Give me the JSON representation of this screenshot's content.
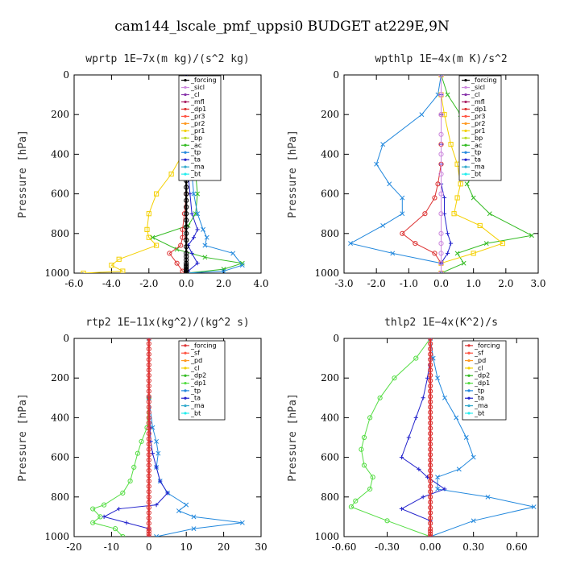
{
  "title": "cam144_lscale_pmf_uppsi0  BUDGET at229E,9N",
  "chart_data": [
    {
      "type": "line",
      "title": "wprtp   1E−7x(m kg)/(s^2 kg)",
      "ylabel": "Pressure [hPa]",
      "xlim": [
        -6,
        4
      ],
      "ylim": [
        1000,
        0
      ],
      "xticks": [
        -6,
        -4,
        -2,
        0,
        2,
        4
      ],
      "xtick_labels": [
        "-6.0",
        "-4.0",
        "-2.0",
        "0.0",
        "2.0",
        "4.0"
      ],
      "yticks": [
        0,
        200,
        400,
        600,
        800,
        1000
      ],
      "ytick_labels": [
        "0",
        "200",
        "400",
        "600",
        "800",
        "1000"
      ],
      "legend_position": "top-right",
      "legend": [
        "_forcing",
        "_sicl",
        "_cl",
        "_mfl",
        "_dp1",
        "_pr3",
        "_pr2",
        "_pr1",
        "_bp",
        "_ac",
        "_tp",
        "_ta",
        "_ma",
        "_bt"
      ],
      "series": [
        {
          "name": "_pr1",
          "color": "#f4d000",
          "marker": "square",
          "x": [
            0,
            0,
            -0.2,
            -0.8,
            -1.6,
            -2,
            -2.1,
            -2,
            -1.6,
            -3.6,
            -4,
            -3.4,
            -5.5
          ],
          "y": [
            0,
            300,
            400,
            500,
            600,
            700,
            780,
            820,
            860,
            930,
            960,
            990,
            1000
          ]
        },
        {
          "name": "_ac",
          "color": "#33bb22",
          "marker": "x",
          "x": [
            0,
            0,
            0.2,
            0.5,
            0.6,
            0.5,
            0.1,
            -1.8,
            -0.5,
            1,
            3,
            2,
            0
          ],
          "y": [
            0,
            300,
            400,
            500,
            600,
            700,
            760,
            820,
            880,
            920,
            950,
            980,
            1000
          ]
        },
        {
          "name": "_tp",
          "color": "#2288dd",
          "marker": "x",
          "x": [
            0,
            0,
            0.1,
            0.3,
            0.4,
            0.6,
            0.9,
            1.1,
            1,
            2.5,
            3,
            2,
            0
          ],
          "y": [
            0,
            300,
            400,
            500,
            600,
            700,
            780,
            820,
            860,
            900,
            960,
            990,
            1000
          ]
        },
        {
          "name": "_ta",
          "color": "#2222cc",
          "marker": "plus",
          "x": [
            0,
            0,
            0,
            0.1,
            0.2,
            0.3,
            0.6,
            0.4,
            0.1,
            0.3,
            0.6,
            0.1,
            0
          ],
          "y": [
            0,
            300,
            400,
            500,
            600,
            700,
            780,
            820,
            860,
            900,
            950,
            990,
            1000
          ]
        },
        {
          "name": "_dp1",
          "color": "#dd3333",
          "marker": "circle",
          "x": [
            0,
            0,
            0,
            0,
            0,
            -0.1,
            -0.2,
            -0.2,
            -0.3,
            -0.9,
            -0.5,
            -0.2,
            0
          ],
          "y": [
            0,
            300,
            400,
            500,
            600,
            700,
            780,
            820,
            860,
            900,
            950,
            990,
            1000
          ]
        },
        {
          "name": "_forcing",
          "color": "#000000",
          "marker": "circle",
          "x": [
            0,
            0,
            0,
            0,
            0,
            0,
            0,
            0,
            0,
            0,
            0,
            0,
            0
          ],
          "y": [
            0,
            100,
            200,
            300,
            400,
            500,
            600,
            700,
            800,
            900,
            950,
            980,
            1000
          ]
        }
      ]
    },
    {
      "type": "line",
      "title": "wpthlp   1E−4x(m K)/s^2",
      "ylabel": "Pressure [hPa]",
      "xlim": [
        -3,
        3
      ],
      "ylim": [
        1000,
        0
      ],
      "xticks": [
        -3,
        -2,
        -1,
        0,
        1,
        2,
        3
      ],
      "xtick_labels": [
        "-3.0",
        "-2.0",
        "-1.0",
        "0.0",
        "1.0",
        "2.0",
        "3.0"
      ],
      "yticks": [
        0,
        200,
        400,
        600,
        800,
        1000
      ],
      "ytick_labels": [
        "0",
        "200",
        "400",
        "600",
        "800",
        "1000"
      ],
      "legend_position": "top-right",
      "legend": [
        "_forcing",
        "_sicl",
        "_cl",
        "_mfl",
        "_dp1",
        "_pr3",
        "_pr2",
        "_pr1",
        "_bp",
        "_ac",
        "_tp",
        "_ta",
        "_ma",
        "_bt"
      ],
      "series": [
        {
          "name": "_tp",
          "color": "#2288dd",
          "marker": "x",
          "x": [
            0,
            -0.1,
            -0.6,
            -1.8,
            -2,
            -1.6,
            -1.2,
            -1.2,
            -1.8,
            -2.8,
            -1.5,
            0,
            0
          ],
          "y": [
            0,
            100,
            200,
            350,
            450,
            550,
            620,
            700,
            760,
            850,
            900,
            950,
            1000
          ]
        },
        {
          "name": "_ac",
          "color": "#33bb22",
          "marker": "x",
          "x": [
            0,
            0.2,
            0.6,
            1.1,
            1.2,
            0.8,
            1.0,
            1.5,
            2.8,
            1.4,
            0.5,
            0.7,
            0
          ],
          "y": [
            0,
            100,
            200,
            350,
            450,
            550,
            620,
            700,
            810,
            850,
            900,
            950,
            1000
          ]
        },
        {
          "name": "_pr1",
          "color": "#f4d000",
          "marker": "square",
          "x": [
            0,
            0,
            0.1,
            0.3,
            0.5,
            0.6,
            0.5,
            0.4,
            1.2,
            1.9,
            1,
            0,
            0
          ],
          "y": [
            0,
            100,
            200,
            350,
            450,
            550,
            620,
            700,
            760,
            850,
            900,
            950,
            1000
          ]
        },
        {
          "name": "_dp1",
          "color": "#dd3333",
          "marker": "circle",
          "x": [
            0,
            0,
            0,
            0,
            0,
            -0.1,
            -0.2,
            -0.5,
            -1.2,
            -0.8,
            -0.2,
            0,
            0
          ],
          "y": [
            0,
            100,
            200,
            350,
            450,
            550,
            620,
            700,
            800,
            850,
            900,
            950,
            1000
          ]
        },
        {
          "name": "_ta",
          "color": "#2222cc",
          "marker": "plus",
          "x": [
            0,
            0,
            0,
            0,
            0,
            0,
            0.1,
            0.1,
            0.2,
            0.3,
            0.2,
            0,
            0
          ],
          "y": [
            0,
            100,
            200,
            350,
            450,
            550,
            620,
            700,
            800,
            850,
            900,
            950,
            1000
          ]
        },
        {
          "name": "_pr3",
          "color": "#cc88dd",
          "marker": "circle",
          "x": [
            0,
            0,
            0,
            0,
            0,
            0,
            0,
            0,
            0,
            0,
            0,
            0,
            0
          ],
          "y": [
            0,
            100,
            200,
            300,
            400,
            500,
            600,
            700,
            800,
            850,
            900,
            950,
            1000
          ]
        }
      ]
    },
    {
      "type": "line",
      "title": "rtp2   1E−11x(kg^2)/(kg^2 s)",
      "ylabel": "Pressure [hPa]",
      "xlim": [
        -20,
        30
      ],
      "ylim": [
        1000,
        0
      ],
      "xticks": [
        -20,
        -10,
        0,
        10,
        20,
        30
      ],
      "xtick_labels": [
        "-20",
        "-10",
        "0",
        "10",
        "20",
        "30"
      ],
      "yticks": [
        0,
        200,
        400,
        600,
        800,
        1000
      ],
      "ytick_labels": [
        "0",
        "200",
        "400",
        "600",
        "800",
        "1000"
      ],
      "legend_position": "top-right",
      "legend": [
        "_forcing",
        "_sf",
        "_pd",
        "_cl",
        "_dp2",
        "_dp1",
        "_tp",
        "_ta",
        "_ma",
        "_bt"
      ],
      "series": [
        {
          "name": "_dp1",
          "color": "#55dd44",
          "marker": "circle",
          "x": [
            0,
            0,
            -0.5,
            -2,
            -3,
            -4,
            -5,
            -7,
            -12,
            -15,
            -13,
            -15,
            -9,
            -7
          ],
          "y": [
            0,
            300,
            450,
            520,
            580,
            650,
            720,
            780,
            840,
            860,
            900,
            930,
            960,
            1000
          ]
        },
        {
          "name": "_tp",
          "color": "#2288dd",
          "marker": "x",
          "x": [
            0,
            0,
            1,
            2,
            2.5,
            2,
            3,
            5,
            10,
            8,
            12,
            25,
            12,
            2
          ],
          "y": [
            0,
            300,
            450,
            520,
            580,
            650,
            720,
            780,
            840,
            870,
            900,
            930,
            960,
            1000
          ]
        },
        {
          "name": "_ta",
          "color": "#2222cc",
          "marker": "plus",
          "x": [
            0,
            0,
            0.3,
            0.5,
            1,
            2,
            3,
            5,
            2,
            -8,
            -12,
            -6,
            0,
            0
          ],
          "y": [
            0,
            300,
            450,
            520,
            580,
            650,
            720,
            780,
            840,
            860,
            900,
            930,
            960,
            1000
          ]
        },
        {
          "name": "_forcing",
          "color": "#dd3333",
          "marker": "circle",
          "x": [
            0,
            0,
            0,
            0,
            0,
            0,
            0,
            0,
            0,
            0,
            0,
            0,
            0,
            0
          ],
          "y": [
            0,
            80,
            160,
            240,
            320,
            400,
            480,
            560,
            640,
            720,
            800,
            880,
            960,
            1000
          ]
        }
      ]
    },
    {
      "type": "line",
      "title": "thlp2   1E−4x(K^2)/s",
      "ylabel": "Pressure [hPa]",
      "xlim": [
        -0.6,
        0.75
      ],
      "ylim": [
        1000,
        0
      ],
      "xticks": [
        -0.6,
        -0.3,
        0,
        0.3,
        0.6
      ],
      "xtick_labels": [
        "-0.60",
        "-0.30",
        "0.00",
        "0.30",
        "0.60"
      ],
      "yticks": [
        0,
        200,
        400,
        600,
        800,
        1000
      ],
      "ytick_labels": [
        "0",
        "200",
        "400",
        "600",
        "800",
        "1000"
      ],
      "legend_position": "top-right",
      "legend": [
        "_forcing",
        "_sf",
        "_pd",
        "_cl",
        "_dp2",
        "_dp1",
        "_tp",
        "_ta",
        "_ma",
        "_bt"
      ],
      "series": [
        {
          "name": "_dp1",
          "color": "#55dd44",
          "marker": "circle",
          "x": [
            0,
            -0.1,
            -0.25,
            -0.35,
            -0.42,
            -0.46,
            -0.48,
            -0.46,
            -0.4,
            -0.42,
            -0.52,
            -0.55,
            -0.3,
            0
          ],
          "y": [
            0,
            100,
            200,
            300,
            400,
            500,
            560,
            640,
            700,
            760,
            820,
            850,
            920,
            1000
          ]
        },
        {
          "name": "_tp",
          "color": "#2288dd",
          "marker": "x",
          "x": [
            0,
            0.02,
            0.05,
            0.1,
            0.18,
            0.25,
            0.3,
            0.2,
            0.05,
            0.05,
            0.4,
            0.72,
            0.3,
            0
          ],
          "y": [
            0,
            100,
            200,
            300,
            400,
            500,
            600,
            660,
            700,
            760,
            800,
            850,
            920,
            1000
          ]
        },
        {
          "name": "_ta",
          "color": "#2222cc",
          "marker": "plus",
          "x": [
            0,
            0,
            -0.02,
            -0.05,
            -0.1,
            -0.15,
            -0.2,
            -0.08,
            -0.02,
            0.1,
            -0.05,
            -0.2,
            0,
            0
          ],
          "y": [
            0,
            100,
            200,
            300,
            400,
            500,
            600,
            660,
            700,
            760,
            800,
            860,
            920,
            1000
          ]
        },
        {
          "name": "_forcing",
          "color": "#dd3333",
          "marker": "circle",
          "x": [
            0,
            0,
            0,
            0,
            0,
            0,
            0,
            0,
            0,
            0,
            0,
            0,
            0,
            0
          ],
          "y": [
            0,
            80,
            160,
            240,
            320,
            400,
            480,
            560,
            640,
            720,
            800,
            880,
            960,
            1000
          ]
        }
      ]
    }
  ]
}
